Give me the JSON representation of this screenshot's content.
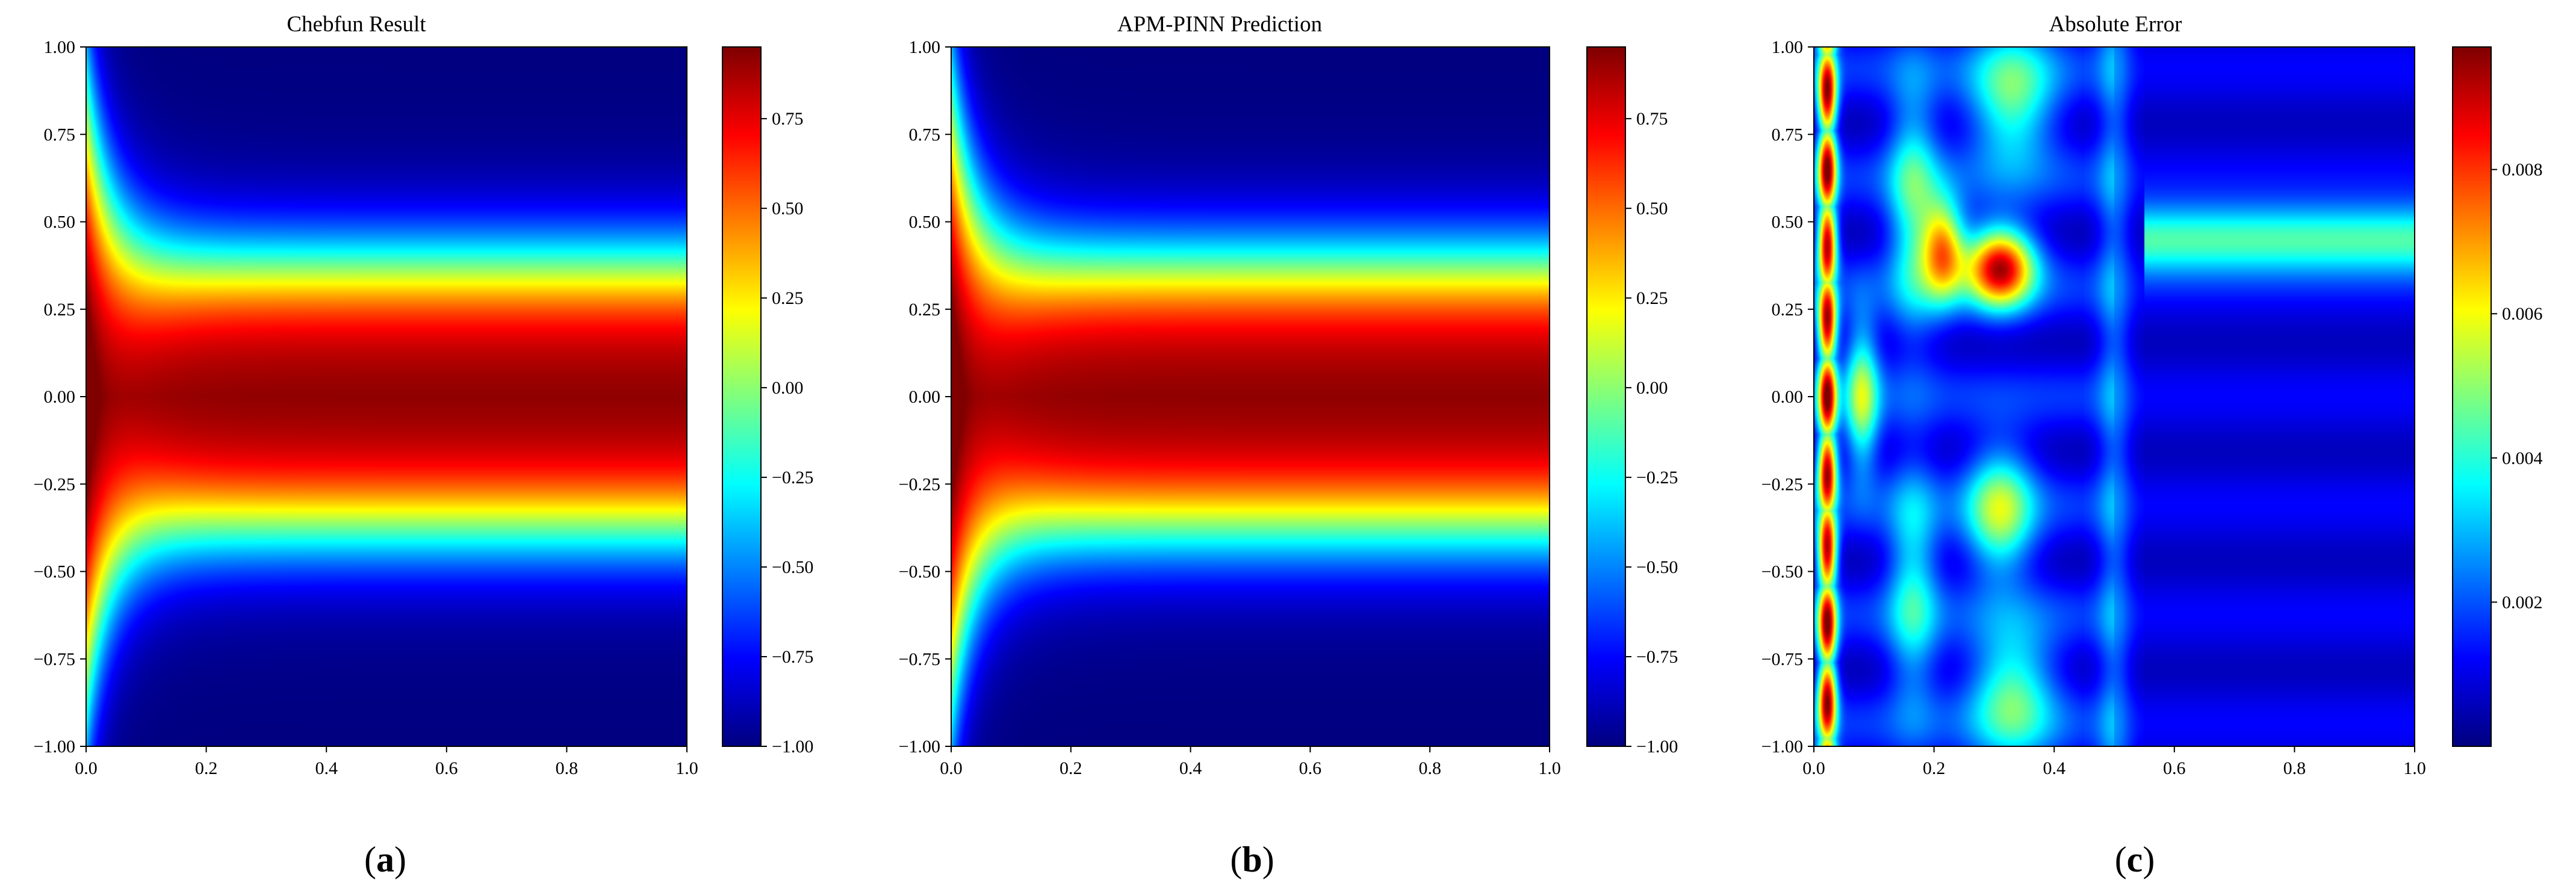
{
  "figure": {
    "captions": [
      "a",
      "b",
      "c"
    ]
  },
  "chart_data": [
    {
      "type": "heatmap",
      "title": "Chebfun Result",
      "xlabel": "",
      "ylabel": "",
      "xlim": [
        0.0,
        1.0
      ],
      "ylim": [
        -1.0,
        1.0
      ],
      "x_ticks": [
        "0.0",
        "0.2",
        "0.4",
        "0.6",
        "0.8",
        "1.0"
      ],
      "y_ticks": [
        "1.00",
        "0.75",
        "0.50",
        "0.25",
        "0.00",
        "−0.25",
        "−0.50",
        "−0.75",
        "−1.00"
      ],
      "colormap": "jet",
      "colorbar": {
        "range": [
          -1.0,
          0.95
        ],
        "ticks": [
          0.75,
          0.5,
          0.25,
          0.0,
          -0.25,
          -0.5,
          -0.75,
          -1.0
        ],
        "tick_labels": [
          "0.75",
          "0.50",
          "0.25",
          "0.00",
          "−0.25",
          "−0.50",
          "−0.75",
          "−1.00"
        ]
      },
      "field": "u(x,t) high (~0.95) in |x| < 0.3, steep transition near |x| ≈ 0.4, low (~−1) for |x| > 0.6; bulge toward 0 near t ≈ 0",
      "caption": "a"
    },
    {
      "type": "heatmap",
      "title": "APM-PINN Prediction",
      "xlabel": "",
      "ylabel": "",
      "xlim": [
        0.0,
        1.0
      ],
      "ylim": [
        -1.0,
        1.0
      ],
      "x_ticks": [
        "0.0",
        "0.2",
        "0.4",
        "0.6",
        "0.8",
        "1.0"
      ],
      "y_ticks": [
        "1.00",
        "0.75",
        "0.50",
        "0.25",
        "0.00",
        "−0.25",
        "−0.50",
        "−0.75",
        "−1.00"
      ],
      "colormap": "jet",
      "colorbar": {
        "range": [
          -1.0,
          0.95
        ],
        "ticks": [
          0.75,
          0.5,
          0.25,
          0.0,
          -0.25,
          -0.5,
          -0.75,
          -1.0
        ],
        "tick_labels": [
          "0.75",
          "0.50",
          "0.25",
          "0.00",
          "−0.25",
          "−0.50",
          "−0.75",
          "−1.00"
        ]
      },
      "field": "visually identical to the Chebfun result",
      "caption": "b"
    },
    {
      "type": "heatmap",
      "title": "Absolute Error",
      "xlabel": "",
      "ylabel": "",
      "xlim": [
        0.0,
        1.0
      ],
      "ylim": [
        -1.0,
        1.0
      ],
      "x_ticks": [
        "0.0",
        "0.2",
        "0.4",
        "0.6",
        "0.8",
        "1.0"
      ],
      "y_ticks": [
        "1.00",
        "0.75",
        "0.50",
        "0.25",
        "0.00",
        "−0.25",
        "−0.50",
        "−0.75",
        "−1.00"
      ],
      "colormap": "jet",
      "colorbar": {
        "range": [
          0.0,
          0.0097
        ],
        "ticks": [
          0.008,
          0.006,
          0.004,
          0.002
        ],
        "tick_labels": [
          "0.008",
          "0.006",
          "0.004",
          "0.002"
        ]
      },
      "field": "max error ~0.0097 at t < 0.05 (red stripes); hot spots near t ≈ 0.2–0.33, x ≈ 0.4 (~0.008); cyan band near x ≈ 0.45 for t > 0.6; errors mostly < 0.003 elsewhere",
      "caption": "c"
    }
  ]
}
